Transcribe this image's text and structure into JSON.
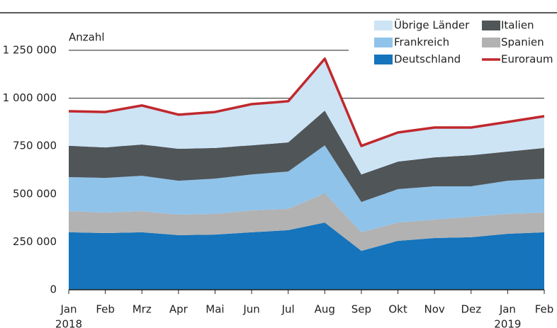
{
  "chart_data": {
    "type": "stacked_area",
    "y_label": "Anzahl",
    "categories": [
      "Jan",
      "Feb",
      "Mrz",
      "Apr",
      "Mai",
      "Jun",
      "Jul",
      "Aug",
      "Sep",
      "Okt",
      "Nov",
      "Dez",
      "Jan",
      "Feb"
    ],
    "x_years": [
      "2018",
      null,
      null,
      null,
      null,
      null,
      null,
      null,
      null,
      null,
      null,
      null,
      "2019",
      null
    ],
    "ylim": [
      0,
      1250000
    ],
    "yticks": [
      0,
      {
        "value": 250000,
        "label": "250 000"
      },
      {
        "value": 500000,
        "label": "500 000"
      },
      {
        "value": 750000,
        "label": "750 000"
      },
      {
        "value": 1000000,
        "label": "1 000 000"
      },
      {
        "value": 1250000,
        "label": "1 250 000"
      }
    ],
    "grid": true,
    "legend": "top-right",
    "series": [
      {
        "name": "Deutschland",
        "color": "#1574bb",
        "values": [
          300000,
          296000,
          300000,
          285000,
          288000,
          300000,
          311000,
          351000,
          203000,
          255000,
          270000,
          274000,
          292000,
          300000
        ]
      },
      {
        "name": "Spanien",
        "color": "#b2b2b2",
        "values": [
          110000,
          107000,
          110000,
          107000,
          108000,
          114000,
          111000,
          152000,
          97000,
          96000,
          96000,
          107000,
          104000,
          103000
        ]
      },
      {
        "name": "Frankreich",
        "color": "#8fc3ea",
        "values": [
          178000,
          181000,
          185000,
          177000,
          184000,
          188000,
          195000,
          251000,
          158000,
          174000,
          174000,
          159000,
          173000,
          177000
        ]
      },
      {
        "name": "Italien",
        "color": "#505558",
        "values": [
          163000,
          159000,
          163000,
          167000,
          160000,
          152000,
          152000,
          181000,
          144000,
          144000,
          151000,
          162000,
          152000,
          160000
        ]
      },
      {
        "name": "Übrige Länder",
        "color": "#cde4f5",
        "values": [
          181000,
          185000,
          204000,
          178000,
          188000,
          215000,
          215000,
          271000,
          149000,
          152000,
          156000,
          145000,
          155000,
          166000
        ]
      },
      {
        "name": "Euroraum",
        "color": "#c0282d",
        "type": "line",
        "values": [
          932000,
          928000,
          962000,
          914000,
          928000,
          969000,
          984000,
          1206000,
          751000,
          821000,
          847000,
          847000,
          876000,
          906000
        ]
      }
    ]
  }
}
